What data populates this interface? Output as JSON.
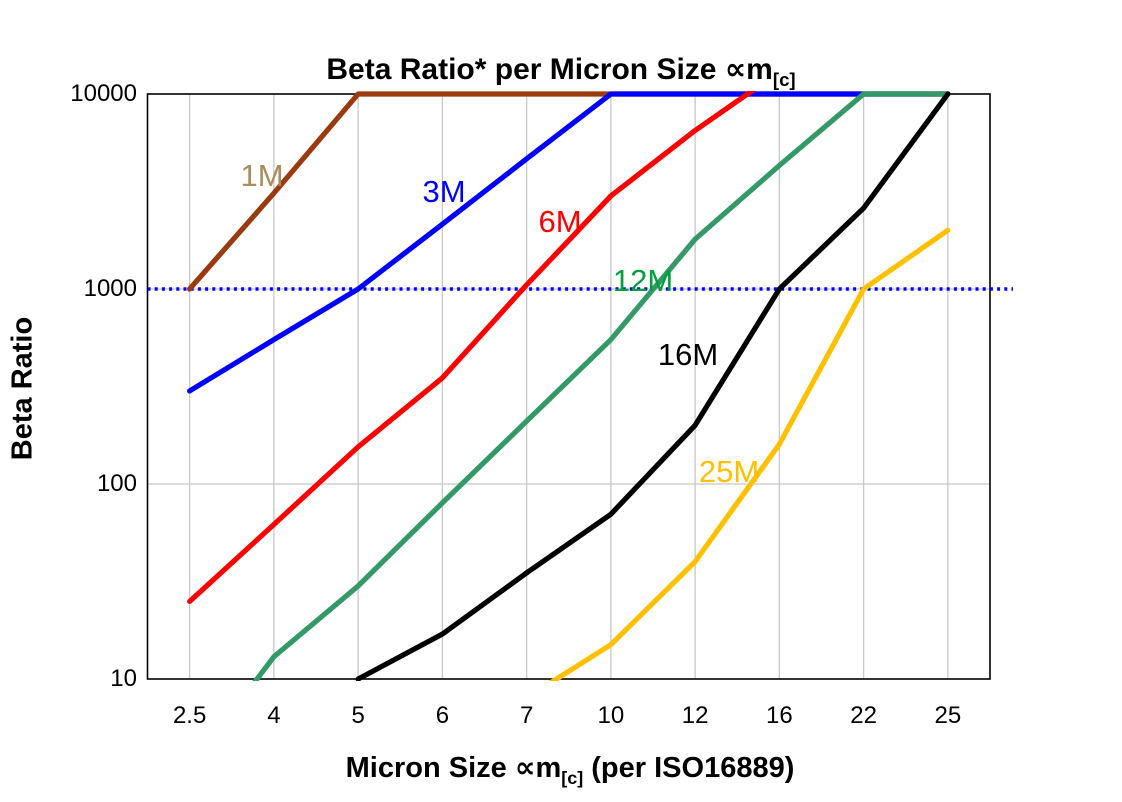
{
  "title": {
    "pre": "Beta Ratio* per Micron Size ",
    "sym": "∝m",
    "sub": "[c]"
  },
  "axes": {
    "y_label": "Beta Ratio",
    "x_label_pre": "Micron Size ",
    "x_label_sym": "∝m",
    "x_label_sub": "[c]",
    "x_label_post": " (per ISO16889)",
    "y_ticks": [
      "10",
      "100",
      "1000",
      "10000"
    ],
    "x_ticks": [
      "2.5",
      "4",
      "5",
      "6",
      "7",
      "10",
      "12",
      "16",
      "22",
      "25"
    ]
  },
  "chart_data": {
    "type": "line",
    "title": "Beta Ratio* per Micron Size ∝m[c]",
    "xlabel": "Micron Size ∝m[c] (per ISO16889)",
    "ylabel": "Beta Ratio",
    "x_axis_type": "categorical",
    "y_axis_type": "log",
    "ylim": [
      10,
      10000
    ],
    "grid": true,
    "legend_position": "inline-labels",
    "categories": [
      2.5,
      4,
      5,
      6,
      7,
      10,
      12,
      16,
      22,
      25
    ],
    "reference_line": {
      "y": 1000,
      "color": "#0000FF",
      "style": "dotted"
    },
    "clip_note": "values above 10000 or below 10 are clipped at the plot edge",
    "series": [
      {
        "name": "1M",
        "color": "#9C3A0F",
        "label_color": "#A98C5C",
        "label_pos": [
          262,
          176
        ],
        "values": [
          1000,
          3100,
          10000,
          10000,
          10000,
          10000,
          10000,
          10000,
          10000,
          10000
        ]
      },
      {
        "name": "3M",
        "color": "#0000FF",
        "label_color": "#0000FF",
        "label_pos": [
          444,
          192
        ],
        "values": [
          300,
          550,
          1000,
          2150,
          4650,
          10000,
          10000,
          10000,
          10000,
          10000
        ]
      },
      {
        "name": "6M",
        "color": "#FF0000",
        "label_color": "#FF0000",
        "label_pos": [
          560,
          222
        ],
        "values": [
          25,
          62,
          155,
          350,
          1050,
          3000,
          6500,
          13000,
          null,
          null
        ]
      },
      {
        "name": "12M",
        "color": "#339966",
        "label_color": "#00A13C",
        "label_pos": [
          643,
          281
        ],
        "values": [
          3.5,
          13,
          30,
          80,
          210,
          550,
          1800,
          4300,
          10000,
          10000
        ]
      },
      {
        "name": "16M",
        "color": "#000000",
        "label_color": "#000000",
        "label_pos": [
          688,
          355
        ],
        "values": [
          null,
          null,
          10,
          17,
          35,
          70,
          200,
          1000,
          2600,
          10000
        ]
      },
      {
        "name": "25M",
        "color": "#FFC000",
        "label_color": "#FFC000",
        "label_pos": [
          729,
          472
        ],
        "values": [
          null,
          null,
          null,
          null,
          8,
          15,
          40,
          160,
          1000,
          2000
        ]
      }
    ],
    "gridline_color": "#C8C8C8",
    "border_color": "#000000"
  }
}
